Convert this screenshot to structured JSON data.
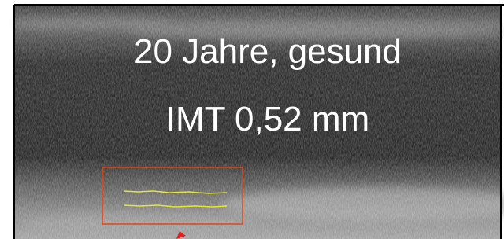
{
  "overlay": {
    "line1": "20 Jahre, gesund",
    "line2": "IMT 0,52 mm"
  }
}
